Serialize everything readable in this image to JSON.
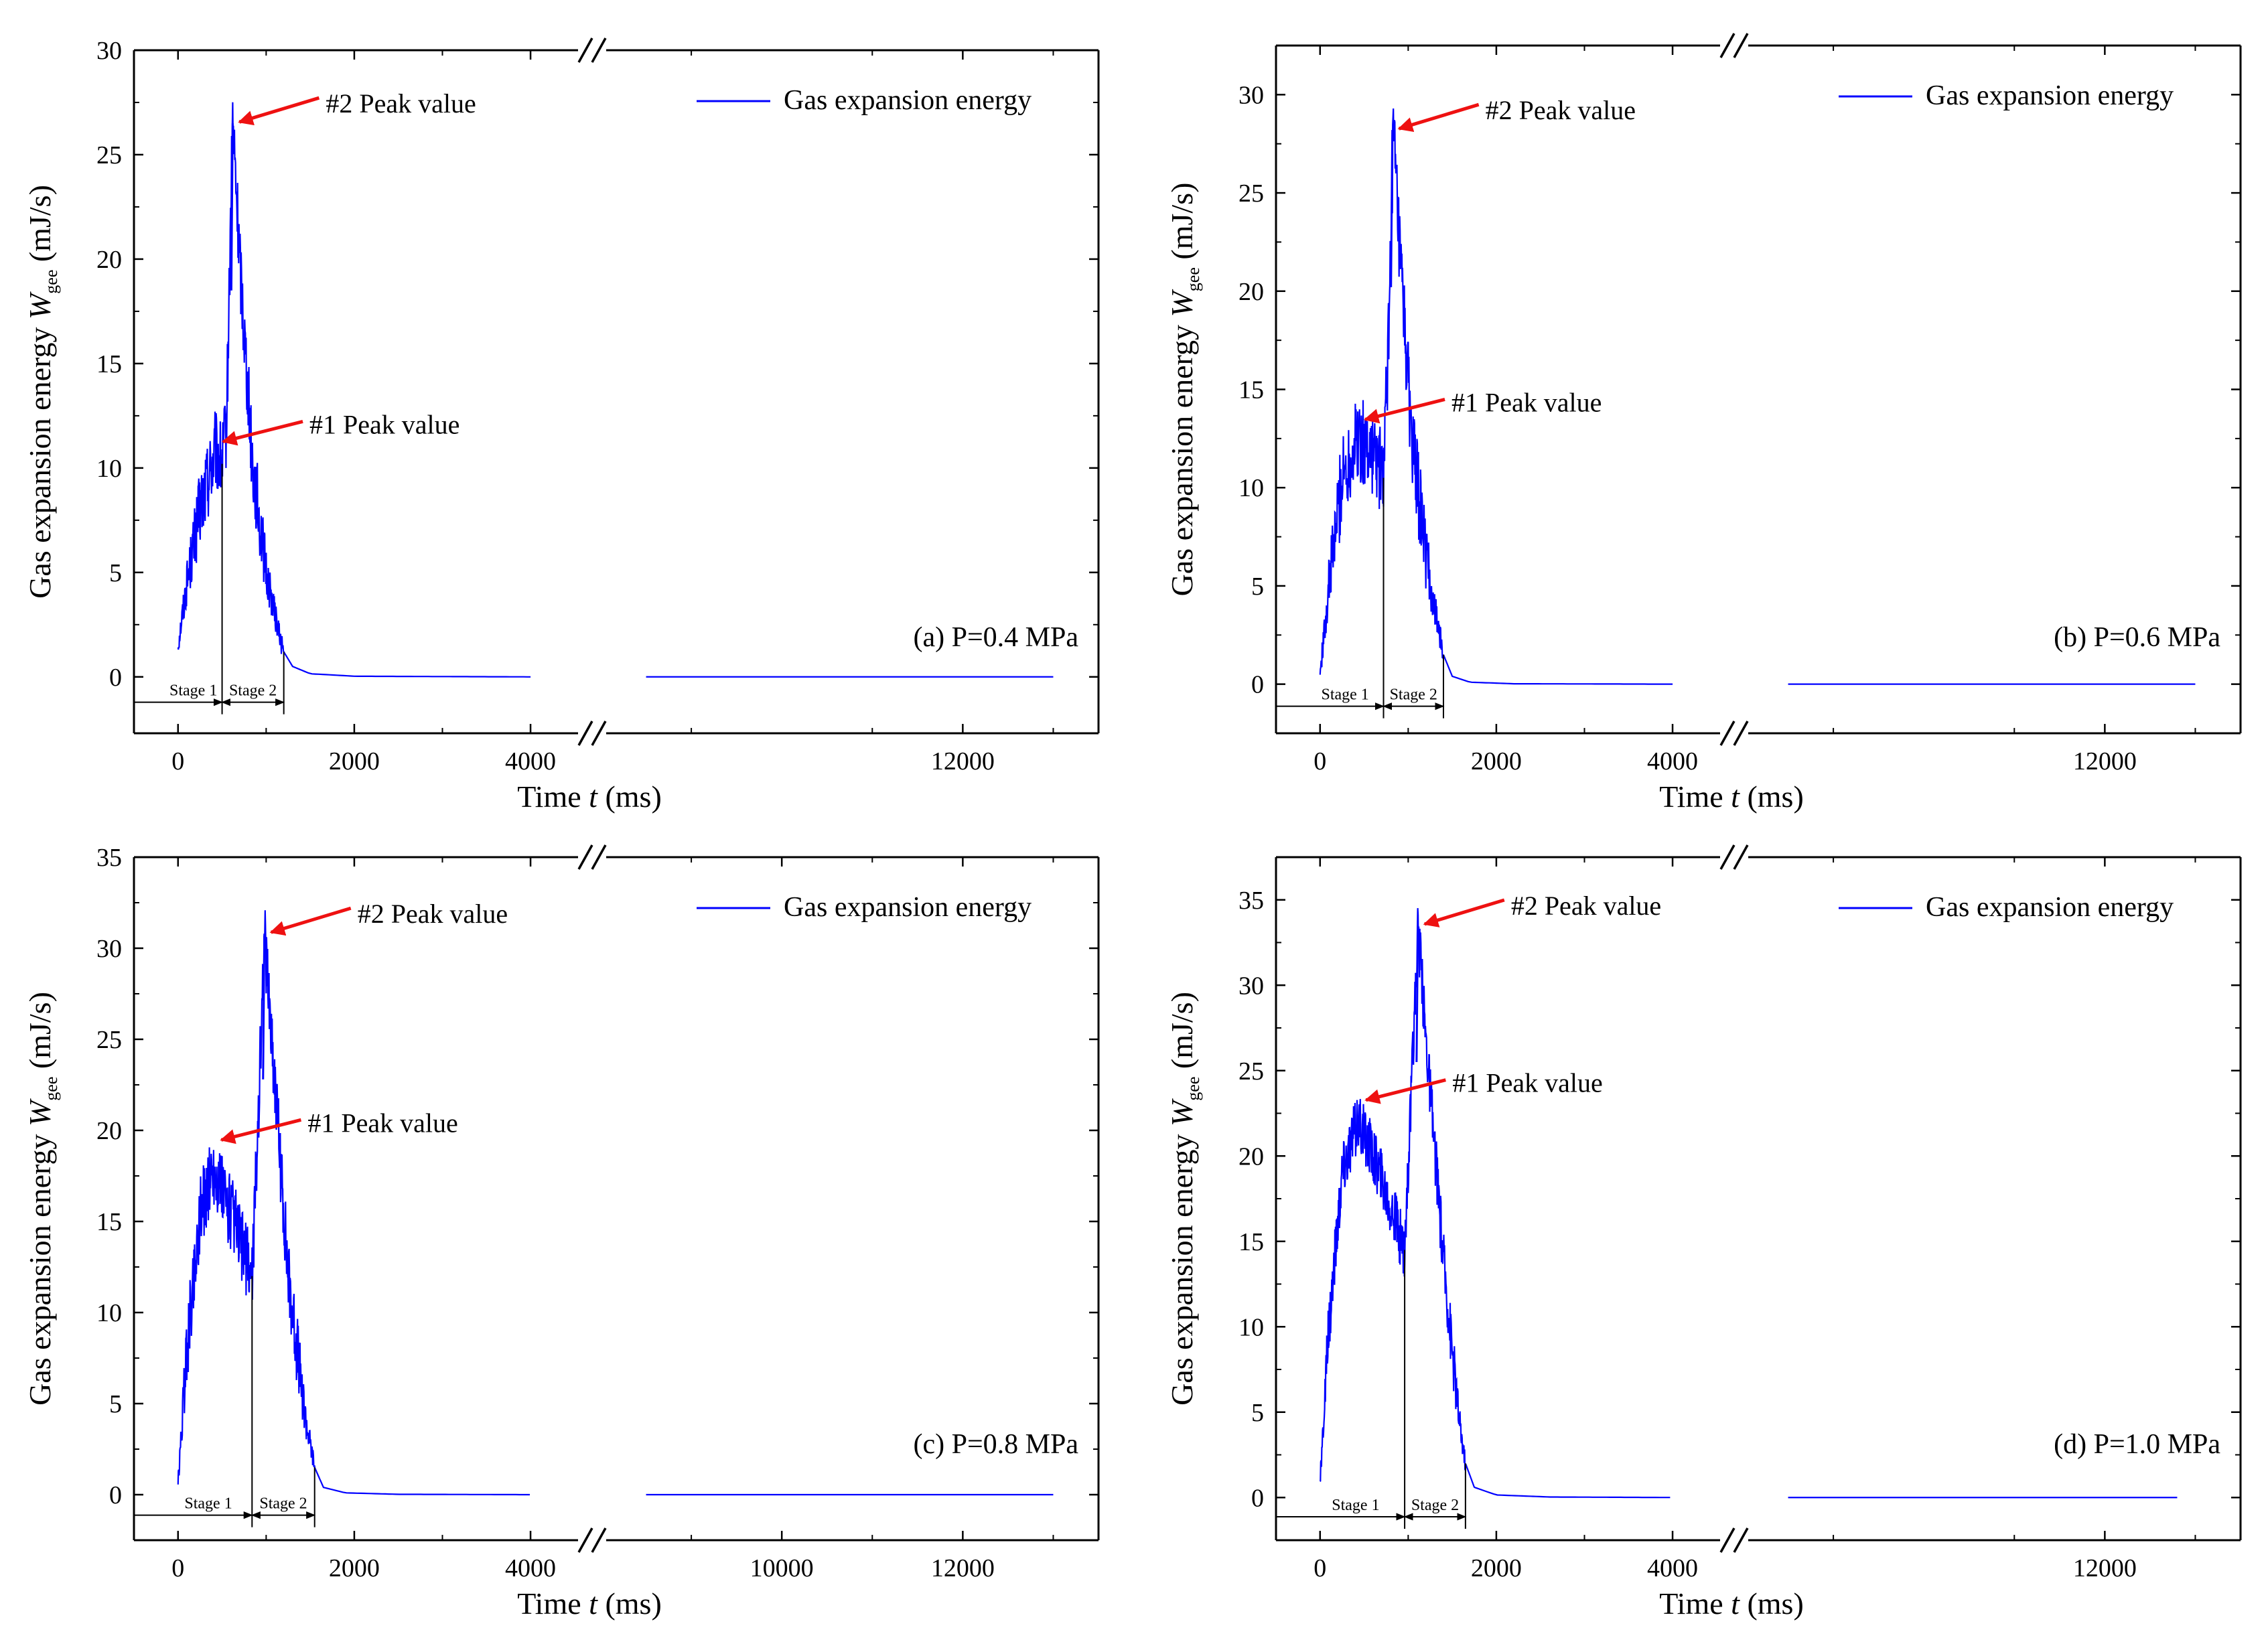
{
  "colors": {
    "series": "#0000ff",
    "arrow": "#ee1111",
    "axis": "#000000"
  },
  "chart_data": [
    {
      "type": "line",
      "panel_label": "(a) P=0.4 MPa",
      "xlabel_prefix": "Time ",
      "xlabel_var": "t",
      "xlabel_unit": " (ms)",
      "ylabel_prefix": "Gas expansion energy ",
      "ylabel_var": "W",
      "ylabel_sub": "gee",
      "ylabel_unit": "  (mJ/s)",
      "legend": "Gas expansion energy",
      "xticks_left": [
        "0",
        "2000",
        "4000"
      ],
      "xticks_right": [
        "12000"
      ],
      "x_left": [
        -500,
        4600
      ],
      "x_right": [
        8000,
        13500
      ],
      "ylim": [
        -2.7,
        30
      ],
      "yticks": [
        0,
        5,
        10,
        15,
        20,
        25,
        30
      ],
      "peak1": {
        "label": "#1 Peak value",
        "x": 420,
        "y": 11.2
      },
      "peak2": {
        "label": "#2 Peak value",
        "x": 620,
        "y": 26.5
      },
      "stage1": {
        "label": "Stage 1",
        "x0": 0,
        "x1": 500
      },
      "stage2": {
        "label": "Stage 2",
        "x0": 500,
        "x1": 1200
      },
      "envelope": [
        [
          0,
          1.5
        ],
        [
          100,
          4.5
        ],
        [
          250,
          8.0
        ],
        [
          420,
          10.8
        ],
        [
          500,
          10.2
        ],
        [
          550,
          12
        ],
        [
          620,
          26.5
        ],
        [
          700,
          20
        ],
        [
          850,
          10
        ],
        [
          1000,
          5
        ],
        [
          1150,
          2.0
        ],
        [
          1200,
          1.2
        ],
        [
          1300,
          0.5
        ],
        [
          1500,
          0.15
        ],
        [
          2000,
          0.03
        ],
        [
          4000,
          0
        ]
      ],
      "tail_right": [
        8500,
        13000
      ],
      "noise": 1.2
    },
    {
      "type": "line",
      "panel_label": "(b) P=0.6 MPa",
      "xlabel_prefix": "Time ",
      "xlabel_var": "t",
      "xlabel_unit": " (ms)",
      "ylabel_prefix": "Gas expansion energy ",
      "ylabel_var": "W",
      "ylabel_sub": "gee",
      "ylabel_unit": "  (mJ/s)",
      "legend": "Gas expansion energy",
      "xticks_left": [
        "0",
        "2000",
        "4000"
      ],
      "xticks_right": [
        "12000"
      ],
      "x_left": [
        -500,
        4600
      ],
      "x_right": [
        8000,
        13500
      ],
      "ylim": [
        -2.5,
        32.5
      ],
      "yticks": [
        0,
        5,
        10,
        15,
        20,
        25,
        30
      ],
      "peak1": {
        "label": "#1 Peak value",
        "x": 420,
        "y": 13.4
      },
      "peak2": {
        "label": "#2 Peak value",
        "x": 820,
        "y": 28.2
      },
      "stage1": {
        "label": "Stage 1",
        "x0": 0,
        "x1": 720
      },
      "stage2": {
        "label": "Stage 2",
        "x0": 720,
        "x1": 1400
      },
      "envelope": [
        [
          0,
          0.5
        ],
        [
          100,
          5
        ],
        [
          250,
          10.5
        ],
        [
          420,
          12.5
        ],
        [
          600,
          11.8
        ],
        [
          720,
          10.5
        ],
        [
          780,
          18
        ],
        [
          830,
          28.2
        ],
        [
          900,
          22
        ],
        [
          1050,
          12
        ],
        [
          1250,
          5
        ],
        [
          1400,
          1.5
        ],
        [
          1500,
          0.4
        ],
        [
          1700,
          0.1
        ],
        [
          2200,
          0.02
        ],
        [
          4000,
          0
        ]
      ],
      "tail_right": [
        8500,
        13000
      ],
      "noise": 1.4
    },
    {
      "type": "line",
      "panel_label": "(c) P=0.8 MPa",
      "xlabel_prefix": "Time ",
      "xlabel_var": "t",
      "xlabel_unit": " (ms)",
      "ylabel_prefix": "Gas expansion energy ",
      "ylabel_var": "W",
      "ylabel_sub": "gee",
      "ylabel_unit": "  (mJ/s)",
      "legend": "Gas expansion energy",
      "xticks_left": [
        "0",
        "2000",
        "4000"
      ],
      "xticks_right": [
        "10000",
        "12000"
      ],
      "x_left": [
        -500,
        4600
      ],
      "x_right": [
        8000,
        13500
      ],
      "ylim": [
        -2.5,
        35
      ],
      "yticks": [
        0,
        5,
        10,
        15,
        20,
        25,
        30,
        35
      ],
      "peak1": {
        "label": "#1 Peak value",
        "x": 400,
        "y": 19.4
      },
      "peak2": {
        "label": "#2 Peak value",
        "x": 980,
        "y": 30.8
      },
      "stage1": {
        "label": "Stage 1",
        "x0": 0,
        "x1": 840
      },
      "stage2": {
        "label": "Stage 2",
        "x0": 840,
        "x1": 1550
      },
      "envelope": [
        [
          0,
          0.5
        ],
        [
          100,
          8
        ],
        [
          250,
          15.5
        ],
        [
          400,
          17.8
        ],
        [
          600,
          15.5
        ],
        [
          840,
          12
        ],
        [
          920,
          22
        ],
        [
          980,
          30.8
        ],
        [
          1080,
          24
        ],
        [
          1250,
          12
        ],
        [
          1450,
          4
        ],
        [
          1550,
          1.5
        ],
        [
          1650,
          0.4
        ],
        [
          1900,
          0.1
        ],
        [
          2500,
          0.02
        ],
        [
          4000,
          0
        ]
      ],
      "tail_right": [
        8500,
        13000
      ],
      "noise": 1.3
    },
    {
      "type": "line",
      "panel_label": "(d) P=1.0 MPa",
      "xlabel_prefix": "Time ",
      "xlabel_var": "t",
      "xlabel_unit": " (ms)",
      "ylabel_prefix": "Gas expansion energy ",
      "ylabel_var": "W",
      "ylabel_sub": "gee",
      "ylabel_unit": "  (mJ/s)",
      "legend": "Gas expansion energy",
      "xticks_left": [
        "0",
        "2000",
        "4000"
      ],
      "xticks_right": [
        "12000"
      ],
      "x_left": [
        -500,
        4600
      ],
      "x_right": [
        8000,
        13500
      ],
      "ylim": [
        -2.5,
        37.5
      ],
      "yticks": [
        0,
        5,
        10,
        15,
        20,
        25,
        30,
        35
      ],
      "peak1": {
        "label": "#1 Peak value",
        "x": 430,
        "y": 23.2
      },
      "peak2": {
        "label": "#2 Peak value",
        "x": 1110,
        "y": 33.5
      },
      "stage1": {
        "label": "Stage 1",
        "x0": 0,
        "x1": 960
      },
      "stage2": {
        "label": "Stage 2",
        "x0": 960,
        "x1": 1650
      },
      "envelope": [
        [
          0,
          0.8
        ],
        [
          100,
          10
        ],
        [
          250,
          19
        ],
        [
          430,
          22
        ],
        [
          650,
          19.5
        ],
        [
          960,
          14.5
        ],
        [
          1040,
          24
        ],
        [
          1110,
          33.5
        ],
        [
          1200,
          27
        ],
        [
          1400,
          14
        ],
        [
          1580,
          4.5
        ],
        [
          1650,
          2
        ],
        [
          1750,
          0.6
        ],
        [
          2000,
          0.15
        ],
        [
          2600,
          0.03
        ],
        [
          4000,
          0
        ]
      ],
      "tail_right": [
        8500,
        12800
      ],
      "noise": 1.1
    }
  ]
}
